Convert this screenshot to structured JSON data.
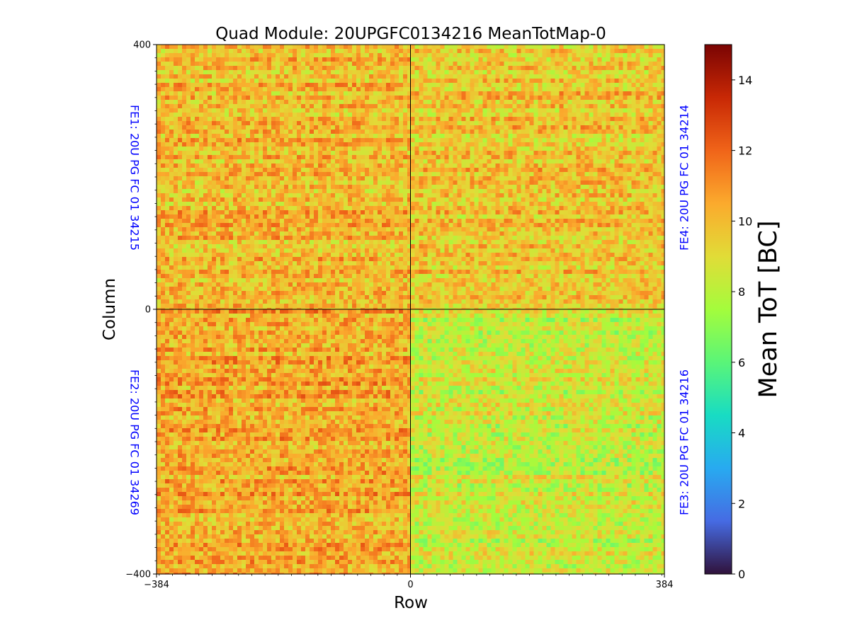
{
  "chart_data": {
    "type": "heatmap",
    "title": "Quad Module: 20UPGFC0134216 MeanTotMap-0",
    "xlabel": "Row",
    "ylabel": "Column",
    "xlim": [
      -384,
      384
    ],
    "ylim": [
      -400,
      400
    ],
    "x_ticks": [
      -384,
      0,
      384
    ],
    "y_ticks": [
      -400,
      0,
      400
    ],
    "x_tick_labels": [
      "−384",
      "0",
      "384"
    ],
    "y_tick_labels": [
      "−400",
      "0",
      "400"
    ],
    "colorbar": {
      "label": "Mean ToT [BC]",
      "range": [
        0,
        15
      ],
      "ticks": [
        0,
        2,
        4,
        6,
        8,
        10,
        12,
        14
      ],
      "colormap": "turbo"
    },
    "quadrants": [
      {
        "name": "FE1",
        "label": "FE1: 20U PG FC 01 34215",
        "x_range": [
          -384,
          0
        ],
        "y_range": [
          0,
          400
        ],
        "mean_tot": 10.0
      },
      {
        "name": "FE4",
        "label": "FE4: 20U PG FC 01 34214",
        "x_range": [
          0,
          384
        ],
        "y_range": [
          0,
          400
        ],
        "mean_tot": 9.7
      },
      {
        "name": "FE2",
        "label": "FE2: 20U PG FC 01 34269",
        "x_range": [
          -384,
          0
        ],
        "y_range": [
          -400,
          0
        ],
        "mean_tot": 10.4
      },
      {
        "name": "FE3",
        "label": "FE3: 20U PG FC 01 34216",
        "x_range": [
          0,
          384
        ],
        "y_range": [
          -400,
          0
        ],
        "mean_tot": 8.4
      }
    ],
    "label_color": "#0000ff",
    "divider_color": "#000000"
  }
}
